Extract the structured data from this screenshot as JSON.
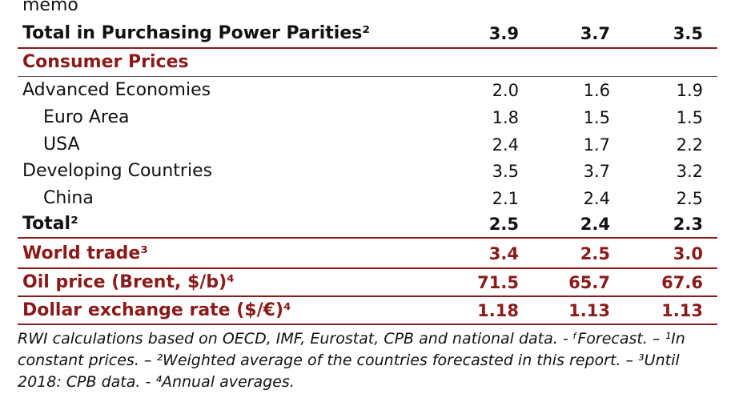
{
  "memo_label": "memo",
  "rows": [
    {
      "label": "Total in Purchasing Power Parities²",
      "v1": "3.9",
      "v2": "3.7",
      "v3": "3.5"
    },
    {
      "label": "Consumer Prices"
    },
    {
      "label": "Advanced Economies",
      "v1": "2.0",
      "v2": "1.6",
      "v3": "1.9"
    },
    {
      "label": "Euro Area",
      "v1": "1.8",
      "v2": "1.5",
      "v3": "1.5"
    },
    {
      "label": "USA",
      "v1": "2.4",
      "v2": "1.7",
      "v3": "2.2"
    },
    {
      "label": "Developing Countries",
      "v1": "3.5",
      "v2": "3.7",
      "v3": "3.2"
    },
    {
      "label": "China",
      "v1": "2.1",
      "v2": "2.4",
      "v3": "2.5"
    },
    {
      "label": "Total²",
      "v1": "2.5",
      "v2": "2.4",
      "v3": "2.3"
    },
    {
      "label": "World trade³",
      "v1": "3.4",
      "v2": "2.5",
      "v3": "3.0"
    },
    {
      "label": "Oil price (Brent, $/b)⁴",
      "v1": "71.5",
      "v2": "65.7",
      "v3": "67.6"
    },
    {
      "label": "Dollar exchange rate ($/€)⁴",
      "v1": "1.18",
      "v2": "1.13",
      "v3": "1.13"
    }
  ],
  "footnote": "RWI calculations based on OECD, IMF, Eurostat, CPB and national data. - ᶠForecast. – ¹In constant prices. – ²Weighted average of the countries forecasted in this report. – ³Until 2018: CPB data. - ⁴Annual averages.",
  "colors": {
    "accent": "#8b1a1a"
  }
}
